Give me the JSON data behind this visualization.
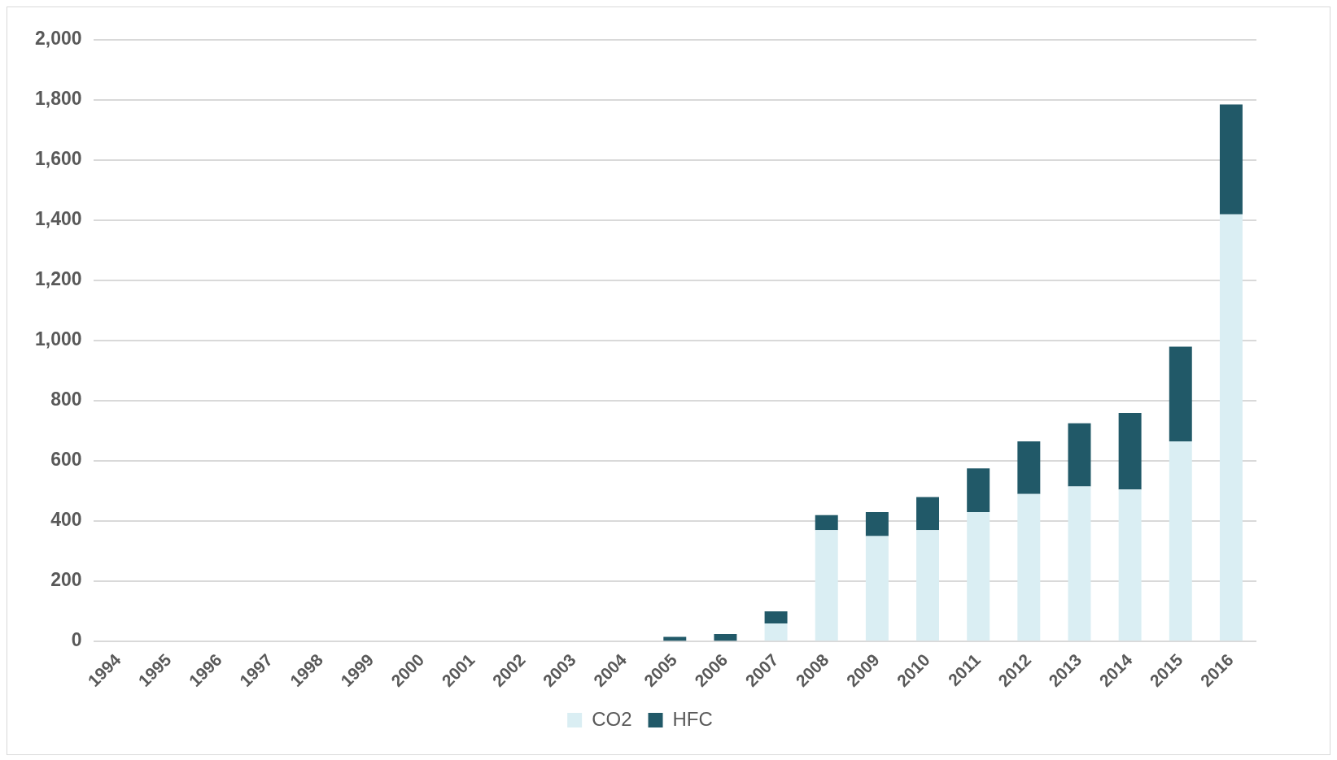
{
  "chart_data": {
    "type": "bar",
    "stacked": true,
    "categories": [
      "1994",
      "1995",
      "1996",
      "1997",
      "1998",
      "1999",
      "2000",
      "2001",
      "2002",
      "2003",
      "2004",
      "2005",
      "2006",
      "2007",
      "2008",
      "2009",
      "2010",
      "2011",
      "2012",
      "2013",
      "2014",
      "2015",
      "2016"
    ],
    "series": [
      {
        "name": "CO2",
        "color": "#daeef3",
        "values": [
          0,
          0,
          0,
          0,
          0,
          0,
          0,
          0,
          0,
          0,
          0,
          0,
          0,
          60,
          370,
          350,
          370,
          430,
          490,
          515,
          505,
          665,
          1420
        ]
      },
      {
        "name": "HFC",
        "color": "#215968",
        "values": [
          0,
          0,
          0,
          0,
          0,
          0,
          0,
          0,
          0,
          0,
          0,
          15,
          25,
          40,
          50,
          80,
          110,
          145,
          175,
          210,
          255,
          315,
          365
        ]
      }
    ],
    "ylim": [
      0,
      2000
    ],
    "yticks": [
      0,
      200,
      400,
      600,
      800,
      {
        "value": 1000,
        "label": "1,000"
      },
      {
        "value": 1200,
        "label": "1,200"
      },
      {
        "value": 1400,
        "label": "1,400"
      },
      {
        "value": 1600,
        "label": "1,600"
      },
      {
        "value": 1800,
        "label": "1,800"
      },
      {
        "value": 2000,
        "label": "2,000"
      }
    ],
    "grid": "y",
    "legend": "bottom"
  }
}
